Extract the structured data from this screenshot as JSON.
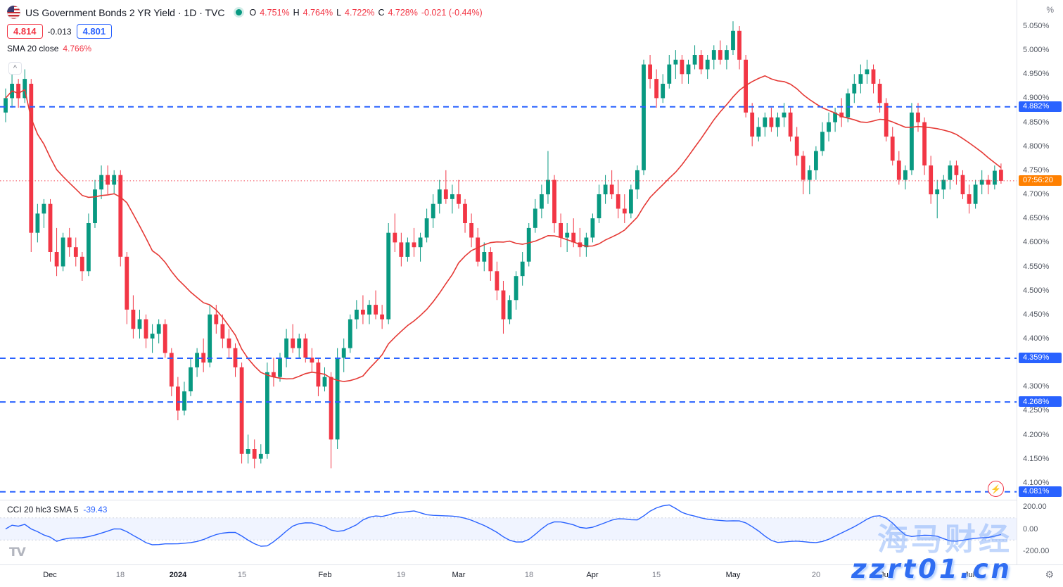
{
  "header": {
    "symbol_title": "US Government Bonds 2 YR Yield · 1D · TVC",
    "ohlc": {
      "o_label": "O",
      "o_value": "4.751%",
      "h_label": "H",
      "h_value": "4.764%",
      "l_label": "L",
      "l_value": "4.722%",
      "c_label": "C",
      "c_value": "4.728%",
      "change": "-0.021 (-0.44%)"
    },
    "sell_price": "4.814",
    "spread": "-0.013",
    "buy_price": "4.801",
    "sma_legend": "SMA 20 close",
    "sma_value": "4.766%"
  },
  "cci_legend": {
    "label": "CCI 20 hlc3 SMA 5",
    "value": "-39.43"
  },
  "icons": {
    "gear": "⚙",
    "flash": "⚡",
    "chevron_up": "^"
  },
  "branding": {
    "logo_text": "TV"
  },
  "watermark": {
    "line1": "海马财经",
    "line2": "zzrt01.cn"
  },
  "axis": {
    "unit_button": "%",
    "price_ticks": [
      {
        "t": "5.050%",
        "p": 5.05
      },
      {
        "t": "5.000%",
        "p": 5.0
      },
      {
        "t": "4.950%",
        "p": 4.95
      },
      {
        "t": "4.900%",
        "p": 4.9
      },
      {
        "t": "4.850%",
        "p": 4.85
      },
      {
        "t": "4.800%",
        "p": 4.8
      },
      {
        "t": "4.750%",
        "p": 4.75
      },
      {
        "t": "4.700%",
        "p": 4.7
      },
      {
        "t": "4.650%",
        "p": 4.65
      },
      {
        "t": "4.600%",
        "p": 4.6
      },
      {
        "t": "4.550%",
        "p": 4.55
      },
      {
        "t": "4.500%",
        "p": 4.5
      },
      {
        "t": "4.450%",
        "p": 4.45
      },
      {
        "t": "4.400%",
        "p": 4.4
      },
      {
        "t": "4.300%",
        "p": 4.3
      },
      {
        "t": "4.250%",
        "p": 4.25
      },
      {
        "t": "4.200%",
        "p": 4.2
      },
      {
        "t": "4.150%",
        "p": 4.15
      },
      {
        "t": "4.100%",
        "p": 4.1
      }
    ],
    "level_labels": [
      {
        "t": "4.882%",
        "p": 4.882
      },
      {
        "t": "4.359%",
        "p": 4.359
      },
      {
        "t": "4.268%",
        "p": 4.268
      },
      {
        "t": "4.081%",
        "p": 4.081
      }
    ],
    "countdown": {
      "t": "07:56:20",
      "p": 4.728
    },
    "cci_ticks": [
      {
        "t": "200.00",
        "v": 200
      },
      {
        "t": "0.00",
        "v": 0
      },
      {
        "t": "-200.00",
        "v": -200
      }
    ],
    "time_labels": [
      {
        "text": "Dec",
        "i": 7,
        "kind": "month"
      },
      {
        "text": "18",
        "i": 18,
        "kind": "day"
      },
      {
        "text": "2024",
        "i": 27,
        "kind": "year"
      },
      {
        "text": "15",
        "i": 37,
        "kind": "day"
      },
      {
        "text": "Feb",
        "i": 50,
        "kind": "month"
      },
      {
        "text": "19",
        "i": 62,
        "kind": "day"
      },
      {
        "text": "Mar",
        "i": 71,
        "kind": "month"
      },
      {
        "text": "18",
        "i": 82,
        "kind": "day"
      },
      {
        "text": "Apr",
        "i": 92,
        "kind": "month"
      },
      {
        "text": "15",
        "i": 102,
        "kind": "day"
      },
      {
        "text": "May",
        "i": 114,
        "kind": "month"
      },
      {
        "text": "20",
        "i": 127,
        "kind": "day"
      },
      {
        "text": "Jun",
        "i": 138,
        "kind": "month"
      },
      {
        "text": "Jul",
        "i": 151,
        "kind": "month"
      }
    ]
  },
  "chart_data": {
    "type": "candlestick",
    "title": "US Government Bonds 2 YR Yield",
    "timeframe": "1D",
    "exchange": "TVC",
    "unit": "%",
    "y_range": [
      4.065,
      5.095
    ],
    "last_price": 4.728,
    "last_change": -0.021,
    "last_change_pct": -0.44,
    "levels": [
      4.882,
      4.359,
      4.268,
      4.081
    ],
    "sma_period": 20,
    "cci_settings": {
      "period": 20,
      "source": "hlc3",
      "smooth": 5,
      "current": -39.43,
      "band": [
        100,
        -100
      ],
      "scale_ticks": [
        200,
        0,
        -200
      ]
    },
    "indicators": [
      {
        "name": "SMA",
        "period": 20,
        "source": "close",
        "current": 4.766
      },
      {
        "name": "CCI",
        "period": 20,
        "source": "hlc3",
        "smooth": 5,
        "current": -39.43
      }
    ],
    "colors": {
      "up": "#089981",
      "down": "#f23645",
      "sma": "#e53935",
      "level": "#2962ff",
      "last": "#f23645",
      "cci": "#2962ff",
      "band": "rgba(41,98,255,0.07)",
      "level_badge": "#2962ff",
      "countdown_badge": "#ff8000"
    },
    "candles": [
      [
        4.87,
        4.92,
        4.85,
        4.9
      ],
      [
        4.9,
        4.95,
        4.88,
        4.93
      ],
      [
        4.93,
        4.94,
        4.88,
        4.9
      ],
      [
        4.9,
        4.96,
        4.89,
        4.94
      ],
      [
        4.93,
        4.94,
        4.58,
        4.62
      ],
      [
        4.62,
        4.68,
        4.6,
        4.66
      ],
      [
        4.66,
        4.69,
        4.63,
        4.68
      ],
      [
        4.68,
        4.69,
        4.56,
        4.58
      ],
      [
        4.58,
        4.63,
        4.53,
        4.55
      ],
      [
        4.55,
        4.62,
        4.54,
        4.61
      ],
      [
        4.61,
        4.63,
        4.57,
        4.59
      ],
      [
        4.59,
        4.61,
        4.55,
        4.57
      ],
      [
        4.57,
        4.58,
        4.52,
        4.54
      ],
      [
        4.54,
        4.66,
        4.53,
        4.64
      ],
      [
        4.64,
        4.73,
        4.63,
        4.71
      ],
      [
        4.71,
        4.76,
        4.69,
        4.74
      ],
      [
        4.74,
        4.76,
        4.7,
        4.72
      ],
      [
        4.72,
        4.75,
        4.7,
        4.74
      ],
      [
        4.74,
        4.75,
        4.55,
        4.57
      ],
      [
        4.57,
        4.58,
        4.43,
        4.46
      ],
      [
        4.46,
        4.49,
        4.4,
        4.42
      ],
      [
        4.42,
        4.46,
        4.4,
        4.44
      ],
      [
        4.44,
        4.45,
        4.38,
        4.4
      ],
      [
        4.4,
        4.43,
        4.37,
        4.41
      ],
      [
        4.41,
        4.44,
        4.39,
        4.43
      ],
      [
        4.43,
        4.44,
        4.36,
        4.37
      ],
      [
        4.37,
        4.38,
        4.28,
        4.3
      ],
      [
        4.3,
        4.32,
        4.23,
        4.25
      ],
      [
        4.25,
        4.31,
        4.24,
        4.29
      ],
      [
        4.29,
        4.36,
        4.28,
        4.34
      ],
      [
        4.34,
        4.38,
        4.32,
        4.37
      ],
      [
        4.37,
        4.4,
        4.33,
        4.35
      ],
      [
        4.35,
        4.47,
        4.34,
        4.45
      ],
      [
        4.45,
        4.47,
        4.41,
        4.43
      ],
      [
        4.43,
        4.45,
        4.38,
        4.4
      ],
      [
        4.4,
        4.42,
        4.36,
        4.38
      ],
      [
        4.38,
        4.39,
        4.32,
        4.34
      ],
      [
        4.34,
        4.35,
        4.14,
        4.16
      ],
      [
        4.16,
        4.2,
        4.14,
        4.17
      ],
      [
        4.17,
        4.19,
        4.13,
        4.15
      ],
      [
        4.15,
        4.18,
        4.14,
        4.16
      ],
      [
        4.16,
        4.35,
        4.15,
        4.33
      ],
      [
        4.33,
        4.36,
        4.3,
        4.32
      ],
      [
        4.32,
        4.37,
        4.31,
        4.36
      ],
      [
        4.36,
        4.42,
        4.34,
        4.4
      ],
      [
        4.4,
        4.43,
        4.37,
        4.38
      ],
      [
        4.38,
        4.41,
        4.36,
        4.4
      ],
      [
        4.4,
        4.41,
        4.35,
        4.36
      ],
      [
        4.36,
        4.38,
        4.33,
        4.35
      ],
      [
        4.35,
        4.36,
        4.28,
        4.3
      ],
      [
        4.3,
        4.34,
        4.29,
        4.32
      ],
      [
        4.32,
        4.33,
        4.13,
        4.19
      ],
      [
        4.19,
        4.38,
        4.17,
        4.36
      ],
      [
        4.36,
        4.4,
        4.33,
        4.38
      ],
      [
        4.38,
        4.45,
        4.37,
        4.44
      ],
      [
        4.44,
        4.48,
        4.42,
        4.46
      ],
      [
        4.46,
        4.49,
        4.43,
        4.45
      ],
      [
        4.45,
        4.48,
        4.43,
        4.47
      ],
      [
        4.47,
        4.5,
        4.44,
        4.45
      ],
      [
        4.45,
        4.47,
        4.42,
        4.44
      ],
      [
        4.44,
        4.64,
        4.43,
        4.62
      ],
      [
        4.62,
        4.66,
        4.58,
        4.6
      ],
      [
        4.6,
        4.62,
        4.55,
        4.57
      ],
      [
        4.57,
        4.61,
        4.56,
        4.6
      ],
      [
        4.6,
        4.63,
        4.57,
        4.59
      ],
      [
        4.59,
        4.62,
        4.56,
        4.61
      ],
      [
        4.61,
        4.67,
        4.6,
        4.65
      ],
      [
        4.65,
        4.7,
        4.63,
        4.68
      ],
      [
        4.68,
        4.73,
        4.66,
        4.71
      ],
      [
        4.71,
        4.75,
        4.68,
        4.69
      ],
      [
        4.69,
        4.72,
        4.66,
        4.7
      ],
      [
        4.7,
        4.73,
        4.67,
        4.68
      ],
      [
        4.68,
        4.69,
        4.62,
        4.64
      ],
      [
        4.64,
        4.66,
        4.59,
        4.61
      ],
      [
        4.61,
        4.63,
        4.55,
        4.56
      ],
      [
        4.56,
        4.6,
        4.54,
        4.58
      ],
      [
        4.58,
        4.59,
        4.52,
        4.54
      ],
      [
        4.54,
        4.56,
        4.48,
        4.5
      ],
      [
        4.5,
        4.52,
        4.41,
        4.44
      ],
      [
        4.44,
        4.49,
        4.43,
        4.48
      ],
      [
        4.48,
        4.54,
        4.46,
        4.53
      ],
      [
        4.53,
        4.58,
        4.51,
        4.56
      ],
      [
        4.56,
        4.64,
        4.55,
        4.63
      ],
      [
        4.63,
        4.69,
        4.62,
        4.67
      ],
      [
        4.67,
        4.72,
        4.65,
        4.7
      ],
      [
        4.7,
        4.79,
        4.68,
        4.73
      ],
      [
        4.73,
        4.74,
        4.62,
        4.64
      ],
      [
        4.64,
        4.66,
        4.59,
        4.61
      ],
      [
        4.61,
        4.64,
        4.58,
        4.62
      ],
      [
        4.62,
        4.65,
        4.59,
        4.6
      ],
      [
        4.6,
        4.63,
        4.57,
        4.59
      ],
      [
        4.59,
        4.62,
        4.57,
        4.61
      ],
      [
        4.61,
        4.66,
        4.6,
        4.65
      ],
      [
        4.65,
        4.72,
        4.64,
        4.7
      ],
      [
        4.7,
        4.74,
        4.68,
        4.72
      ],
      [
        4.72,
        4.75,
        4.69,
        4.7
      ],
      [
        4.7,
        4.73,
        4.65,
        4.67
      ],
      [
        4.67,
        4.7,
        4.64,
        4.66
      ],
      [
        4.66,
        4.72,
        4.65,
        4.71
      ],
      [
        4.71,
        4.76,
        4.69,
        4.75
      ],
      [
        4.75,
        4.98,
        4.74,
        4.97
      ],
      [
        4.97,
        4.99,
        4.92,
        4.94
      ],
      [
        4.94,
        4.96,
        4.88,
        4.9
      ],
      [
        4.9,
        4.95,
        4.89,
        4.93
      ],
      [
        4.93,
        4.99,
        4.92,
        4.97
      ],
      [
        4.97,
        5.0,
        4.94,
        4.98
      ],
      [
        4.98,
        4.99,
        4.93,
        4.95
      ],
      [
        4.95,
        4.98,
        4.93,
        4.97
      ],
      [
        4.97,
        5.01,
        4.96,
        4.99
      ],
      [
        4.99,
        5.0,
        4.95,
        4.96
      ],
      [
        4.96,
        4.99,
        4.94,
        4.98
      ],
      [
        4.98,
        5.01,
        4.96,
        5.0
      ],
      [
        5.0,
        5.02,
        4.97,
        4.98
      ],
      [
        4.98,
        5.01,
        4.96,
        5.0
      ],
      [
        5.0,
        5.06,
        4.99,
        5.04
      ],
      [
        5.04,
        5.05,
        4.96,
        4.98
      ],
      [
        4.98,
        4.99,
        4.86,
        4.87
      ],
      [
        4.87,
        4.89,
        4.8,
        4.82
      ],
      [
        4.82,
        4.86,
        4.81,
        4.84
      ],
      [
        4.84,
        4.87,
        4.82,
        4.86
      ],
      [
        4.86,
        4.88,
        4.83,
        4.84
      ],
      [
        4.84,
        4.87,
        4.82,
        4.86
      ],
      [
        4.86,
        4.89,
        4.84,
        4.87
      ],
      [
        4.87,
        4.88,
        4.81,
        4.82
      ],
      [
        4.82,
        4.84,
        4.76,
        4.78
      ],
      [
        4.78,
        4.79,
        4.7,
        4.73
      ],
      [
        4.73,
        4.76,
        4.7,
        4.75
      ],
      [
        4.75,
        4.8,
        4.73,
        4.79
      ],
      [
        4.79,
        4.85,
        4.78,
        4.83
      ],
      [
        4.83,
        4.87,
        4.81,
        4.85
      ],
      [
        4.85,
        4.88,
        4.83,
        4.87
      ],
      [
        4.87,
        4.9,
        4.84,
        4.86
      ],
      [
        4.86,
        4.92,
        4.85,
        4.91
      ],
      [
        4.91,
        4.95,
        4.89,
        4.93
      ],
      [
        4.93,
        4.97,
        4.91,
        4.95
      ],
      [
        4.95,
        4.98,
        4.93,
        4.96
      ],
      [
        4.96,
        4.97,
        4.91,
        4.93
      ],
      [
        4.93,
        4.94,
        4.87,
        4.89
      ],
      [
        4.89,
        4.9,
        4.81,
        4.82
      ],
      [
        4.82,
        4.84,
        4.76,
        4.77
      ],
      [
        4.77,
        4.79,
        4.72,
        4.73
      ],
      [
        4.73,
        4.76,
        4.71,
        4.75
      ],
      [
        4.75,
        4.89,
        4.74,
        4.87
      ],
      [
        4.87,
        4.89,
        4.83,
        4.85
      ],
      [
        4.85,
        4.86,
        4.74,
        4.76
      ],
      [
        4.76,
        4.78,
        4.68,
        4.7
      ],
      [
        4.7,
        4.73,
        4.65,
        4.71
      ],
      [
        4.71,
        4.74,
        4.69,
        4.73
      ],
      [
        4.73,
        4.77,
        4.71,
        4.76
      ],
      [
        4.76,
        4.77,
        4.72,
        4.74
      ],
      [
        4.74,
        4.75,
        4.69,
        4.7
      ],
      [
        4.7,
        4.72,
        4.66,
        4.68
      ],
      [
        4.68,
        4.73,
        4.67,
        4.72
      ],
      [
        4.72,
        4.75,
        4.7,
        4.73
      ],
      [
        4.73,
        4.74,
        4.7,
        4.72
      ],
      [
        4.72,
        4.76,
        4.71,
        4.749
      ],
      [
        4.751,
        4.764,
        4.722,
        4.728
      ]
    ]
  }
}
